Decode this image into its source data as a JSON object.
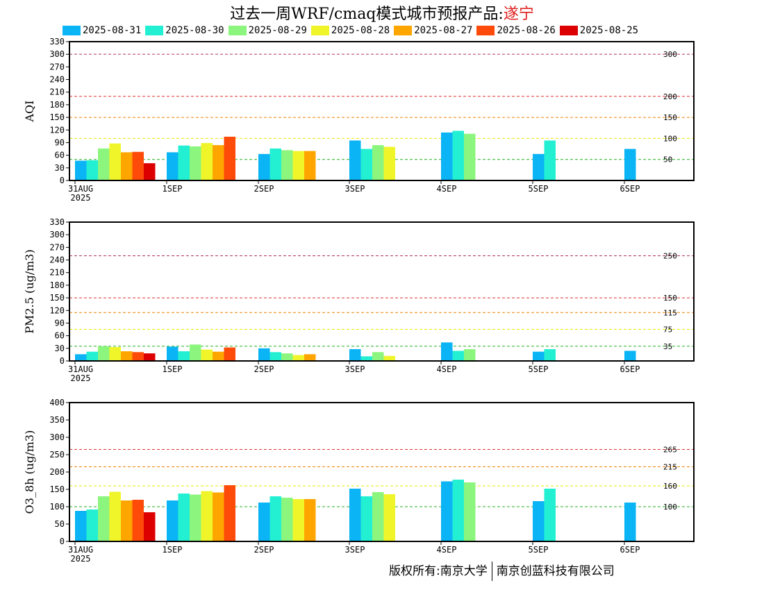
{
  "title": {
    "text": "过去一周WRF/cmaq模式城市预报产品:",
    "city": "遂宁"
  },
  "legend": [
    {
      "label": "2025-08-31",
      "color": "#0ab4f5"
    },
    {
      "label": "2025-08-30",
      "color": "#23f0d2"
    },
    {
      "label": "2025-08-29",
      "color": "#8cf57d"
    },
    {
      "label": "2025-08-28",
      "color": "#f0f52a"
    },
    {
      "label": "2025-08-27",
      "color": "#ffa500"
    },
    {
      "label": "2025-08-26",
      "color": "#ff4b0a"
    },
    {
      "label": "2025-08-25",
      "color": "#dc0000"
    }
  ],
  "copyright": {
    "left": "版权所有:南京大学",
    "right": "南京创蓝科技有限公司"
  },
  "chart_data": [
    {
      "type": "bar",
      "ylabel": "AQI",
      "ylim": [
        0,
        330
      ],
      "yticks": [
        0,
        30,
        60,
        90,
        120,
        150,
        180,
        210,
        240,
        270,
        300,
        330
      ],
      "categories": [
        "31AUG\n2025",
        "1SEP",
        "2SEP",
        "3SEP",
        "4SEP",
        "5SEP",
        "6SEP"
      ],
      "thresholds": [
        {
          "value": 300,
          "label": "300",
          "color": "#b03060"
        },
        {
          "value": 200,
          "label": "200",
          "color": "#e03030"
        },
        {
          "value": 150,
          "label": "150",
          "color": "#f08000"
        },
        {
          "value": 100,
          "label": "100",
          "color": "#e8e800"
        },
        {
          "value": 50,
          "label": "50",
          "color": "#20b020"
        }
      ],
      "groups": [
        [
          47,
          48,
          76,
          88,
          67,
          68,
          41
        ],
        [
          67,
          83,
          81,
          89,
          84,
          104
        ],
        [
          63,
          76,
          72,
          70,
          70
        ],
        [
          95,
          75,
          84,
          80
        ],
        [
          114,
          118,
          111
        ],
        [
          63,
          95
        ],
        [
          75
        ]
      ]
    },
    {
      "type": "bar",
      "ylabel": "PM2.5 (ug/m3)",
      "ylim": [
        0,
        330
      ],
      "yticks": [
        0,
        30,
        60,
        90,
        120,
        150,
        180,
        210,
        240,
        270,
        300,
        330
      ],
      "categories": [
        "31AUG\n2025",
        "1SEP",
        "2SEP",
        "3SEP",
        "4SEP",
        "5SEP",
        "6SEP"
      ],
      "thresholds": [
        {
          "value": 250,
          "label": "250",
          "color": "#b03060"
        },
        {
          "value": 150,
          "label": "150",
          "color": "#e03030"
        },
        {
          "value": 115,
          "label": "115",
          "color": "#f08000"
        },
        {
          "value": 75,
          "label": "75",
          "color": "#e8e800"
        },
        {
          "value": 35,
          "label": "35",
          "color": "#20b020"
        }
      ],
      "groups": [
        [
          16,
          22,
          35,
          33,
          23,
          21,
          18
        ],
        [
          34,
          23,
          39,
          27,
          22,
          32
        ],
        [
          30,
          21,
          18,
          14,
          16
        ],
        [
          28,
          11,
          21,
          12
        ],
        [
          44,
          24,
          28
        ],
        [
          22,
          28
        ],
        [
          24
        ]
      ]
    },
    {
      "type": "bar",
      "ylabel": "O3_8h (ug/m3)",
      "ylim": [
        0,
        400
      ],
      "yticks": [
        0,
        50,
        100,
        150,
        200,
        250,
        300,
        350,
        400
      ],
      "categories": [
        "31AUG\n2025",
        "1SEP",
        "2SEP",
        "3SEP",
        "4SEP",
        "5SEP",
        "6SEP"
      ],
      "thresholds": [
        {
          "value": 265,
          "label": "265",
          "color": "#e03030"
        },
        {
          "value": 215,
          "label": "215",
          "color": "#f08000"
        },
        {
          "value": 160,
          "label": "160",
          "color": "#e8e800"
        },
        {
          "value": 100,
          "label": "100",
          "color": "#20b020"
        }
      ],
      "groups": [
        [
          88,
          92,
          130,
          143,
          118,
          120,
          84
        ],
        [
          118,
          138,
          135,
          145,
          141,
          162
        ],
        [
          112,
          130,
          126,
          122,
          122
        ],
        [
          152,
          130,
          142,
          136
        ],
        [
          173,
          178,
          170
        ],
        [
          116,
          152
        ],
        [
          112
        ]
      ]
    }
  ]
}
